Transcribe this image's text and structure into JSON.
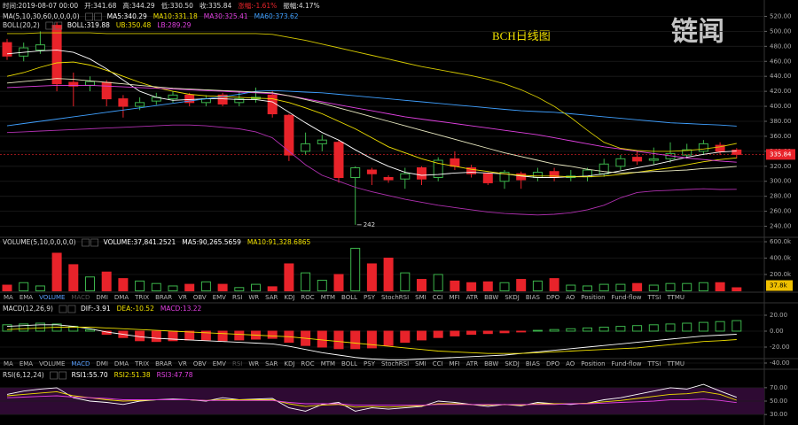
{
  "logo": "链闻",
  "indicator_tabs": [
    "MA",
    "EMA",
    "VOLUME",
    "MACD",
    "DMI",
    "DMA",
    "TRIX",
    "BRAR",
    "VR",
    "OBV",
    "EMV",
    "RSI",
    "WR",
    "SAR",
    "KDJ",
    "ROC",
    "MTM",
    "BOLL",
    "PSY",
    "StochRSI",
    "SMI",
    "CCI",
    "MFI",
    "ATR",
    "BBW",
    "SKDJ",
    "BIAS",
    "DPO",
    "AO",
    "Position",
    "Fund-flow",
    "TTSI",
    "TTMU"
  ],
  "chart_data": [
    {
      "type": "candlestick",
      "title": "BCH日线图",
      "up_color": "#3cb44b",
      "down_color": "#e8232a",
      "grid": true,
      "ylim": [
        230,
        530
      ],
      "yticks": [
        {
          "value": 240,
          "label": "240.00"
        },
        {
          "value": 260,
          "label": "260.00"
        },
        {
          "value": 280,
          "label": "280.00"
        },
        {
          "value": 300,
          "label": "300.00"
        },
        {
          "value": 320,
          "label": "320.00"
        },
        {
          "value": 340,
          "label": "340.00"
        },
        {
          "value": 360,
          "label": "360.00"
        },
        {
          "value": 380,
          "label": "380.00"
        },
        {
          "value": 400,
          "label": "400.00"
        },
        {
          "value": 420,
          "label": "420.00"
        },
        {
          "value": 440,
          "label": "440.00"
        },
        {
          "value": 460,
          "label": "460.00"
        },
        {
          "value": 480,
          "label": "480.00"
        },
        {
          "value": 500,
          "label": "500.00"
        },
        {
          "value": 520,
          "label": "520.00"
        }
      ],
      "legend": [
        [
          {
            "text": "时间:2019-08-07 00:00",
            "color": "#dddddd"
          },
          {
            "text": "开:341.68",
            "color": "#dddddd"
          },
          {
            "text": "高:344.29",
            "color": "#dddddd"
          },
          {
            "text": "低:330.50",
            "color": "#dddddd"
          },
          {
            "text": "收:335.84",
            "color": "#dddddd"
          },
          {
            "text": "涨幅:-1.61%",
            "color": "#e8232a"
          },
          {
            "text": "振幅:4.17%",
            "color": "#dddddd"
          }
        ],
        [
          {
            "text": "MA(5,10,30,60,0,0,0,0)",
            "color": "#dddddd"
          },
          {
            "text": "MA5:340.29",
            "color": "#ffffff"
          },
          {
            "text": "MA10:331.18",
            "color": "#f0e000"
          },
          {
            "text": "MA30:325.41",
            "color": "#e040e0"
          },
          {
            "text": "MA60:373.62",
            "color": "#3fa0ff"
          }
        ],
        [
          {
            "text": "BOLL(20,2)",
            "color": "#dddddd"
          },
          {
            "text": "BOLL:319.88",
            "color": "#ffffff"
          },
          {
            "text": "UB:350.48",
            "color": "#f0e000"
          },
          {
            "text": "LB:289.29",
            "color": "#e040e0"
          }
        ]
      ],
      "open": [
        485,
        467,
        475,
        508,
        432,
        428,
        432,
        410,
        400,
        407,
        410,
        415,
        405,
        415,
        405,
        410,
        415,
        388,
        340,
        350,
        352,
        305,
        315,
        305,
        303,
        318,
        305,
        330,
        318,
        310,
        300,
        310,
        305,
        313,
        305,
        306,
        310,
        320,
        332,
        328,
        330,
        335,
        340,
        348,
        341.68
      ],
      "close": [
        467,
        478,
        482,
        430,
        427,
        433,
        410,
        400,
        405,
        412,
        415,
        405,
        410,
        403,
        410,
        412,
        390,
        335,
        350,
        355,
        305,
        318,
        310,
        302,
        310,
        303,
        328,
        320,
        310,
        298,
        312,
        302,
        312,
        305,
        307,
        315,
        323,
        330,
        327,
        330,
        337,
        342,
        350,
        340,
        335.84
      ],
      "high": [
        490,
        485,
        500,
        512,
        445,
        440,
        435,
        415,
        412,
        418,
        420,
        418,
        415,
        418,
        420,
        425,
        420,
        390,
        365,
        362,
        355,
        320,
        318,
        308,
        318,
        320,
        332,
        340,
        322,
        312,
        315,
        313,
        318,
        318,
        315,
        318,
        330,
        335,
        340,
        345,
        352,
        350,
        355,
        352,
        344.29
      ],
      "low": [
        462,
        460,
        470,
        420,
        400,
        420,
        400,
        385,
        395,
        402,
        405,
        400,
        400,
        400,
        400,
        405,
        385,
        327,
        335,
        340,
        298,
        242,
        295,
        298,
        290,
        295,
        300,
        315,
        305,
        295,
        290,
        290,
        300,
        300,
        300,
        300,
        306,
        315,
        322,
        322,
        325,
        330,
        335,
        335,
        330.5
      ],
      "series": [
        {
          "color": "#ffffff",
          "values": [
            470,
            472,
            474,
            475,
            472,
            463,
            450,
            435,
            420,
            412,
            408,
            409,
            410,
            410,
            409,
            409,
            406,
            392,
            378,
            365,
            355,
            342,
            330,
            320,
            312,
            308,
            309,
            311,
            312,
            311,
            310,
            307,
            305,
            305,
            306,
            307,
            310,
            314,
            318,
            322,
            327,
            332,
            336,
            339,
            340.29
          ]
        },
        {
          "color": "#f0e000",
          "values": [
            440,
            445,
            452,
            458,
            459,
            455,
            448,
            440,
            432,
            425,
            420,
            416,
            414,
            413,
            412,
            411,
            410,
            405,
            398,
            390,
            380,
            370,
            358,
            346,
            338,
            330,
            324,
            320,
            316,
            313,
            310,
            308,
            307,
            307,
            306,
            306,
            307,
            309,
            312,
            315,
            318,
            322,
            326,
            329,
            331.18
          ]
        },
        {
          "color": "#e040e0",
          "values": [
            425,
            426,
            427,
            428,
            428,
            428,
            427,
            426,
            425,
            424,
            423,
            422,
            421,
            420,
            419,
            418,
            417,
            414,
            410,
            406,
            402,
            398,
            394,
            390,
            386,
            383,
            380,
            377,
            374,
            371,
            368,
            365,
            362,
            358,
            354,
            350,
            346,
            343,
            340,
            337,
            334,
            331,
            329,
            327,
            325.41
          ]
        },
        {
          "color": "#3fa0ff",
          "values": [
            374,
            377,
            380,
            383,
            386,
            389,
            392,
            395,
            398,
            401,
            404,
            407,
            410,
            413,
            416,
            420,
            421,
            420,
            419,
            418,
            416,
            414,
            412,
            410,
            408,
            406,
            404,
            402,
            400,
            398,
            396,
            394,
            393,
            392,
            390,
            388,
            386,
            384,
            382,
            380,
            378,
            377,
            376,
            375,
            373.62
          ]
        },
        {
          "color": "#e8e8c0",
          "values": [
            431,
            433,
            435,
            437,
            436,
            434,
            432,
            430,
            428,
            426,
            424,
            423,
            422,
            421,
            420,
            419,
            418,
            414,
            409,
            404,
            398,
            392,
            386,
            380,
            374,
            368,
            362,
            356,
            350,
            344,
            338,
            333,
            328,
            323,
            320,
            316,
            313,
            311,
            312,
            313,
            314,
            315,
            317,
            318,
            319.88
          ]
        },
        {
          "color": "#d4c800",
          "values": [
            497,
            497,
            498,
            498,
            498,
            498,
            497,
            497,
            497,
            497,
            497,
            497,
            497,
            497,
            497,
            497,
            496,
            492,
            488,
            483,
            478,
            473,
            468,
            463,
            458,
            453,
            449,
            445,
            441,
            436,
            430,
            422,
            412,
            400,
            385,
            368,
            352,
            344,
            341,
            340,
            340,
            341,
            343,
            346,
            350.48
          ]
        },
        {
          "color": "#b030b0",
          "values": [
            365,
            366,
            367,
            368,
            369,
            370,
            371,
            372,
            373,
            374,
            375,
            375,
            374,
            372,
            370,
            366,
            358,
            340,
            322,
            308,
            300,
            292,
            286,
            281,
            276,
            272,
            268,
            265,
            262,
            259,
            257,
            256,
            255,
            256,
            258,
            262,
            268,
            278,
            285,
            287,
            288,
            289,
            290,
            289,
            289.29
          ]
        }
      ]
    },
    {
      "type": "volume",
      "grid": true,
      "up_color": "#3cb44b",
      "down_color": "#e8232a",
      "current_label": "37.8k",
      "ylim": [
        0,
        650000
      ],
      "yticks": [
        {
          "value": 200000,
          "label": "200.0k"
        },
        {
          "value": 400000,
          "label": "400.0k"
        },
        {
          "value": 600000,
          "label": "600.0k"
        }
      ],
      "legend": [
        [
          {
            "text": "VOLUME(5,10,0,0,0,0)",
            "color": "#dddddd"
          },
          {
            "text": "VOLUME:37,841.2521",
            "color": "#ffffff"
          },
          {
            "text": "MA5:90,265.5659",
            "color": "#ffffff"
          },
          {
            "text": "MA10:91,328.6865",
            "color": "#f0e000"
          }
        ]
      ],
      "values": [
        70000,
        100000,
        60000,
        460000,
        320000,
        170000,
        230000,
        150000,
        120000,
        90000,
        60000,
        80000,
        110000,
        80000,
        40000,
        80000,
        50000,
        330000,
        220000,
        130000,
        200000,
        520000,
        330000,
        400000,
        220000,
        140000,
        200000,
        120000,
        100000,
        110000,
        100000,
        140000,
        120000,
        150000,
        70000,
        60000,
        80000,
        80000,
        90000,
        70000,
        90000,
        90000,
        100000,
        100000,
        37841.2521
      ]
    },
    {
      "type": "bar",
      "grid": true,
      "up_color": "#3cb44b",
      "down_color": "#e8232a",
      "ylim": [
        -45,
        35
      ],
      "yticks": [
        {
          "value": -40,
          "label": "-40.00"
        },
        {
          "value": -20,
          "label": "-20.00"
        },
        {
          "value": 0,
          "label": "0.00"
        },
        {
          "value": 20,
          "label": "20.00"
        }
      ],
      "legend": [
        [
          {
            "text": "MACD(12,26,9)",
            "color": "#dddddd"
          },
          {
            "text": "DIF:-3.91",
            "color": "#ffffff"
          },
          {
            "text": "DEA:-10.52",
            "color": "#f0e000"
          },
          {
            "text": "MACD:13.22",
            "color": "#e040e0"
          }
        ]
      ],
      "values": [
        8,
        9,
        10,
        9,
        6,
        2,
        -4,
        -8,
        -12,
        -13,
        -12,
        -11,
        -11,
        -12,
        -11,
        -10,
        -9,
        -14,
        -18,
        -20,
        -22,
        -22,
        -21,
        -18,
        -14,
        -11,
        -8,
        -6,
        -4,
        -3,
        -2,
        -1,
        1,
        2,
        3,
        4,
        5,
        6,
        7,
        8,
        9,
        10,
        11,
        12,
        13.22
      ],
      "series": [
        {
          "color": "#ffffff",
          "values": [
            6,
            7,
            8,
            8,
            6,
            3,
            -1,
            -4,
            -7,
            -9,
            -10,
            -11,
            -12,
            -13,
            -14,
            -15,
            -16,
            -19,
            -23,
            -27,
            -30,
            -33,
            -35,
            -36,
            -36,
            -35,
            -34,
            -33,
            -32,
            -31,
            -30,
            -28,
            -26,
            -24,
            -22,
            -20,
            -18,
            -16,
            -14,
            -12,
            -10,
            -8,
            -6,
            -5,
            -3.91
          ]
        },
        {
          "color": "#f0e000",
          "values": [
            2,
            3,
            4,
            5,
            5,
            5,
            4,
            3,
            2,
            1,
            0,
            -1,
            -2,
            -3,
            -4,
            -5,
            -6,
            -7,
            -9,
            -11,
            -13,
            -15,
            -17,
            -19,
            -21,
            -23,
            -25,
            -26,
            -27,
            -28,
            -28,
            -28,
            -27,
            -26,
            -25,
            -24,
            -23,
            -22,
            -21,
            -19,
            -17,
            -15,
            -13,
            -12,
            -10.52
          ]
        }
      ]
    },
    {
      "type": "line",
      "grid": true,
      "band": [
        30,
        70
      ],
      "band_color": "#2e0a33",
      "ylim": [
        17,
        87
      ],
      "yticks": [
        {
          "value": 30,
          "label": "30.00"
        },
        {
          "value": 50,
          "label": "50.00"
        },
        {
          "value": 70,
          "label": "70.00"
        }
      ],
      "legend": [
        [
          {
            "text": "RSI(6,12,24)",
            "color": "#dddddd"
          },
          {
            "text": "RSI1:55.70",
            "color": "#ffffff"
          },
          {
            "text": "RSI2:51.38",
            "color": "#f0e000"
          },
          {
            "text": "RSI3:47.78",
            "color": "#e040e0"
          }
        ]
      ],
      "series": [
        {
          "color": "#ffffff",
          "values": [
            60,
            65,
            68,
            70,
            55,
            50,
            48,
            45,
            50,
            52,
            53,
            52,
            50,
            55,
            52,
            53,
            54,
            40,
            35,
            45,
            48,
            35,
            40,
            38,
            40,
            42,
            50,
            48,
            45,
            42,
            45,
            43,
            48,
            46,
            45,
            47,
            52,
            55,
            60,
            65,
            70,
            68,
            75,
            65,
            55.7
          ]
        },
        {
          "color": "#f0e000",
          "values": [
            58,
            60,
            62,
            64,
            58,
            55,
            52,
            50,
            51,
            52,
            52,
            52,
            51,
            52,
            52,
            52,
            52,
            46,
            42,
            44,
            45,
            41,
            42,
            41,
            42,
            43,
            46,
            46,
            45,
            44,
            45,
            44,
            46,
            46,
            46,
            47,
            49,
            51,
            54,
            57,
            60,
            61,
            64,
            60,
            51.38
          ]
        },
        {
          "color": "#e040e0",
          "values": [
            55,
            56,
            57,
            58,
            56,
            55,
            54,
            52,
            52,
            52,
            52,
            52,
            51,
            51,
            51,
            51,
            51,
            48,
            46,
            46,
            46,
            44,
            44,
            44,
            44,
            44,
            45,
            45,
            45,
            45,
            45,
            45,
            45,
            45,
            46,
            46,
            47,
            48,
            49,
            50,
            52,
            52,
            53,
            51,
            47.78
          ]
        }
      ]
    }
  ]
}
